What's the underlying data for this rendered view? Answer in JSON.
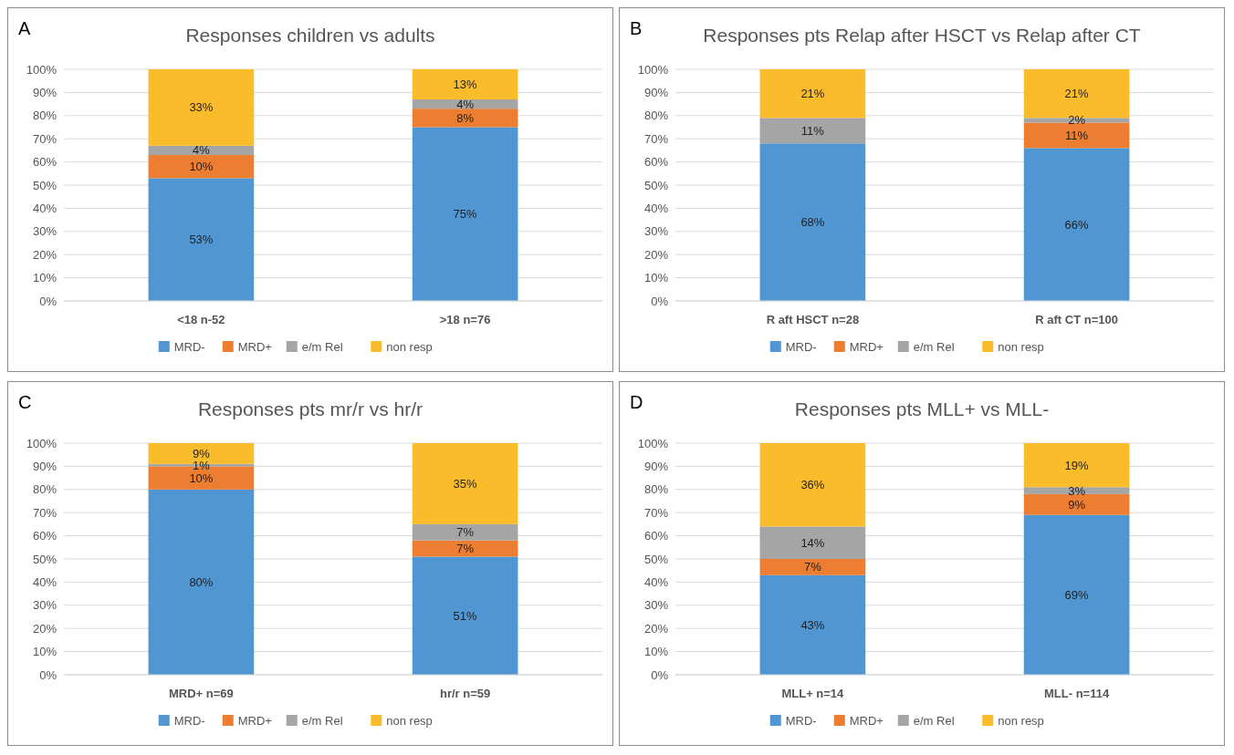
{
  "chart_data": [
    {
      "type": "bar",
      "title": "Responses children vs adults",
      "annotations": [
        "A"
      ],
      "categories": [
        "<18 n-52",
        ">18 n=76"
      ],
      "stacked": true,
      "legend": "bottom",
      "grid": "y",
      "ylim": [
        0,
        100
      ],
      "yticks": [
        {
          "value": 0,
          "label": "0%"
        },
        {
          "value": 10,
          "label": "10%"
        },
        {
          "value": 20,
          "label": "20%"
        },
        {
          "value": 30,
          "label": "30%"
        },
        {
          "value": 40,
          "label": "40%"
        },
        {
          "value": 50,
          "label": "50%"
        },
        {
          "value": 60,
          "label": "60%"
        },
        {
          "value": 70,
          "label": "70%"
        },
        {
          "value": 80,
          "label": "80%"
        },
        {
          "value": 90,
          "label": "90%"
        },
        {
          "value": 100,
          "label": "100%"
        }
      ],
      "series": [
        {
          "name": "MRD-",
          "color": "#5096d2",
          "values": [
            53,
            75
          ],
          "value_labels": [
            "53%",
            "75%"
          ]
        },
        {
          "name": "MRD+",
          "color": "#ed7d31",
          "values": [
            10,
            8
          ],
          "value_labels": [
            "10%",
            "8%"
          ]
        },
        {
          "name": "e/m Rel",
          "color": "#a5a5a5",
          "values": [
            4,
            4
          ],
          "value_labels": [
            "4%",
            "4%"
          ]
        },
        {
          "name": "non resp",
          "color": "#fbbc2c",
          "values": [
            33,
            13
          ],
          "value_labels": [
            "33%",
            "13%"
          ]
        }
      ]
    },
    {
      "type": "bar",
      "title": "Responses  pts Relap after HSCT vs Relap after CT",
      "annotations": [
        "B"
      ],
      "categories": [
        "R aft HSCT n=28",
        "R aft CT n=100"
      ],
      "stacked": true,
      "legend": "bottom",
      "grid": "y",
      "ylim": [
        0,
        100
      ],
      "yticks": [
        {
          "value": 0,
          "label": "0%"
        },
        {
          "value": 10,
          "label": "10%"
        },
        {
          "value": 20,
          "label": "20%"
        },
        {
          "value": 30,
          "label": "30%"
        },
        {
          "value": 40,
          "label": "40%"
        },
        {
          "value": 50,
          "label": "50%"
        },
        {
          "value": 60,
          "label": "60%"
        },
        {
          "value": 70,
          "label": "70%"
        },
        {
          "value": 80,
          "label": "80%"
        },
        {
          "value": 90,
          "label": "90%"
        },
        {
          "value": 100,
          "label": "100%"
        }
      ],
      "series": [
        {
          "name": "MRD-",
          "color": "#5096d2",
          "values": [
            68,
            66
          ],
          "value_labels": [
            "68%",
            "66%"
          ]
        },
        {
          "name": "MRD+",
          "color": "#ed7d31",
          "values": [
            null,
            11
          ],
          "value_labels": [
            null,
            "11%"
          ]
        },
        {
          "name": "e/m Rel",
          "color": "#a5a5a5",
          "values": [
            11,
            2
          ],
          "value_labels": [
            "11%",
            "2%"
          ]
        },
        {
          "name": "non resp",
          "color": "#fbbc2c",
          "values": [
            21,
            21
          ],
          "value_labels": [
            "21%",
            "21%"
          ]
        }
      ]
    },
    {
      "type": "bar",
      "title": "Responses pts mr/r vs hr/r",
      "annotations": [
        "C"
      ],
      "categories": [
        "MRD+ n=69",
        "hr/r n=59"
      ],
      "stacked": true,
      "legend": "bottom",
      "grid": "y",
      "ylim": [
        0,
        100
      ],
      "yticks": [
        {
          "value": 0,
          "label": "0%"
        },
        {
          "value": 10,
          "label": "10%"
        },
        {
          "value": 20,
          "label": "20%"
        },
        {
          "value": 30,
          "label": "30%"
        },
        {
          "value": 40,
          "label": "40%"
        },
        {
          "value": 50,
          "label": "50%"
        },
        {
          "value": 60,
          "label": "60%"
        },
        {
          "value": 70,
          "label": "70%"
        },
        {
          "value": 80,
          "label": "80%"
        },
        {
          "value": 90,
          "label": "90%"
        },
        {
          "value": 100,
          "label": "100%"
        }
      ],
      "series": [
        {
          "name": "MRD-",
          "color": "#5096d2",
          "values": [
            80,
            51
          ],
          "value_labels": [
            "80%",
            "51%"
          ]
        },
        {
          "name": "MRD+",
          "color": "#ed7d31",
          "values": [
            10,
            7
          ],
          "value_labels": [
            "10%",
            "7%"
          ]
        },
        {
          "name": "e/m Rel",
          "color": "#a5a5a5",
          "values": [
            1,
            7
          ],
          "value_labels": [
            "1%",
            "7%"
          ]
        },
        {
          "name": "non resp",
          "color": "#fbbc2c",
          "values": [
            9,
            35
          ],
          "value_labels": [
            "9%",
            "35%"
          ]
        }
      ]
    },
    {
      "type": "bar",
      "title": "Responses pts MLL+ vs MLL-",
      "annotations": [
        "D"
      ],
      "categories": [
        "MLL+ n=14",
        "MLL- n=114"
      ],
      "stacked": true,
      "legend": "bottom",
      "grid": "y",
      "ylim": [
        0,
        100
      ],
      "yticks": [
        {
          "value": 0,
          "label": "0%"
        },
        {
          "value": 10,
          "label": "10%"
        },
        {
          "value": 20,
          "label": "20%"
        },
        {
          "value": 30,
          "label": "30%"
        },
        {
          "value": 40,
          "label": "40%"
        },
        {
          "value": 50,
          "label": "50%"
        },
        {
          "value": 60,
          "label": "60%"
        },
        {
          "value": 70,
          "label": "70%"
        },
        {
          "value": 80,
          "label": "80%"
        },
        {
          "value": 90,
          "label": "90%"
        },
        {
          "value": 100,
          "label": "100%"
        }
      ],
      "series": [
        {
          "name": "MRD-",
          "color": "#5096d2",
          "values": [
            43,
            69
          ],
          "value_labels": [
            "43%",
            "69%"
          ]
        },
        {
          "name": "MRD+",
          "color": "#ed7d31",
          "values": [
            7,
            9
          ],
          "value_labels": [
            "7%",
            "9%"
          ]
        },
        {
          "name": "e/m Rel",
          "color": "#a5a5a5",
          "values": [
            14,
            3
          ],
          "value_labels": [
            "14%",
            "3%"
          ]
        },
        {
          "name": "non resp",
          "color": "#fbbc2c",
          "values": [
            36,
            19
          ],
          "value_labels": [
            "36%",
            "19%"
          ]
        }
      ]
    }
  ]
}
